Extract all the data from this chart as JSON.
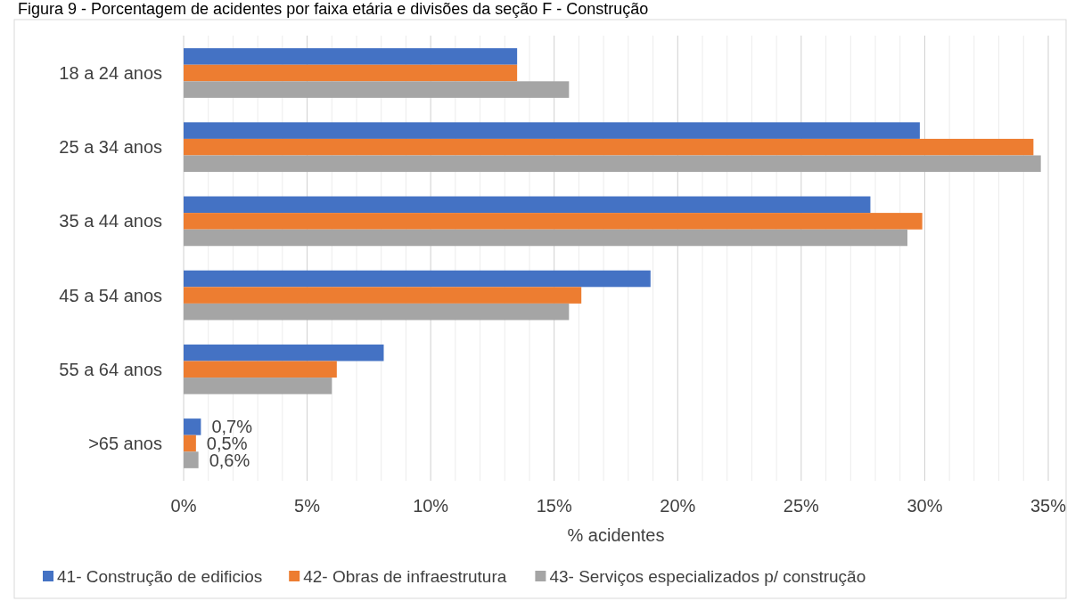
{
  "chart_data": {
    "type": "bar",
    "orientation": "horizontal",
    "title": "Figura 9 - Porcentagem de acidentes por faixa etária e divisões da seção F - Construção",
    "xlabel": "% acidentes",
    "categories": [
      "18 a 24 anos",
      "25 a 34 anos",
      "35 a 44 anos",
      "45 a 54 anos",
      "55 a 64 anos",
      ">65 anos"
    ],
    "series": [
      {
        "name": "41- Construção de edificios",
        "color": "#4472c4",
        "values": [
          13.5,
          29.8,
          27.8,
          18.9,
          8.1,
          0.7
        ],
        "value_labels": [
          null,
          null,
          null,
          null,
          null,
          "0,7%"
        ]
      },
      {
        "name": "42- Obras de infraestrutura",
        "color": "#ed7d31",
        "values": [
          13.5,
          34.4,
          29.9,
          16.1,
          6.2,
          0.5
        ],
        "value_labels": [
          null,
          null,
          null,
          null,
          null,
          "0,5%"
        ]
      },
      {
        "name": "43- Serviços especializados p/ construção",
        "color": "#a5a5a5",
        "values": [
          15.6,
          34.7,
          29.3,
          15.6,
          6.0,
          0.6
        ],
        "value_labels": [
          null,
          null,
          null,
          null,
          null,
          "0,6%"
        ]
      }
    ],
    "xlim": [
      0,
      35
    ],
    "xticks": [
      {
        "value": 0,
        "label": "0%"
      },
      {
        "value": 5,
        "label": "5%"
      },
      {
        "value": 10,
        "label": "10%"
      },
      {
        "value": 15,
        "label": "15%"
      },
      {
        "value": 20,
        "label": "20%"
      },
      {
        "value": 25,
        "label": "25%"
      },
      {
        "value": 30,
        "label": "30%"
      },
      {
        "value": 35,
        "label": "35%"
      }
    ],
    "grid": "x",
    "legend": "bottom"
  }
}
